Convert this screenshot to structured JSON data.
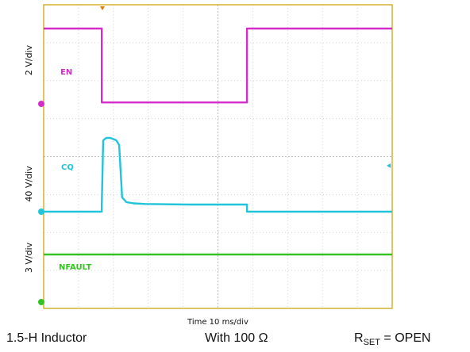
{
  "chart_data": {
    "type": "line",
    "title": "",
    "time_label": "Time 10 ms/div",
    "time_divisions": 10,
    "vertical_divisions": 8,
    "frame_color": "#c8a000",
    "grid_color": "#c8c8c8",
    "channels": [
      {
        "name": "EN",
        "scale_label": "2 V/div",
        "color": "#d42cc9",
        "marker_color": "#d42cc9",
        "x": [
          0,
          4.0,
          4.0,
          14.0,
          14.0,
          24.0
        ],
        "y": [
          5.2,
          5.2,
          0.1,
          0.1,
          5.2,
          5.2
        ]
      },
      {
        "name": "CQ",
        "scale_label": "40 V/div",
        "color": "#21c4d8",
        "marker_color": "#21c4d8",
        "x": [
          0,
          4.0,
          4.0,
          4.1,
          4.3,
          4.6,
          5.0,
          5.2,
          5.4,
          5.7,
          6.2,
          7.0,
          10.0,
          14.0,
          14.0,
          24.0
        ],
        "y": [
          0,
          0,
          6,
          60,
          62,
          62,
          60,
          56,
          12,
          8,
          7,
          6.5,
          6,
          6,
          0,
          0
        ]
      },
      {
        "name": "NFAULT",
        "scale_label": "3 V/div",
        "color": "#33c421",
        "marker_color": "#33c421",
        "x": [
          0,
          24.0
        ],
        "y": [
          4.8,
          4.8
        ]
      }
    ]
  },
  "captions": {
    "inductor": "1.5-H Inductor",
    "resistor_prefix": "With 100",
    "resistor_unit": "Ω",
    "rset_main": "R",
    "rset_sub": "SET",
    "rset_value": " = OPEN"
  }
}
